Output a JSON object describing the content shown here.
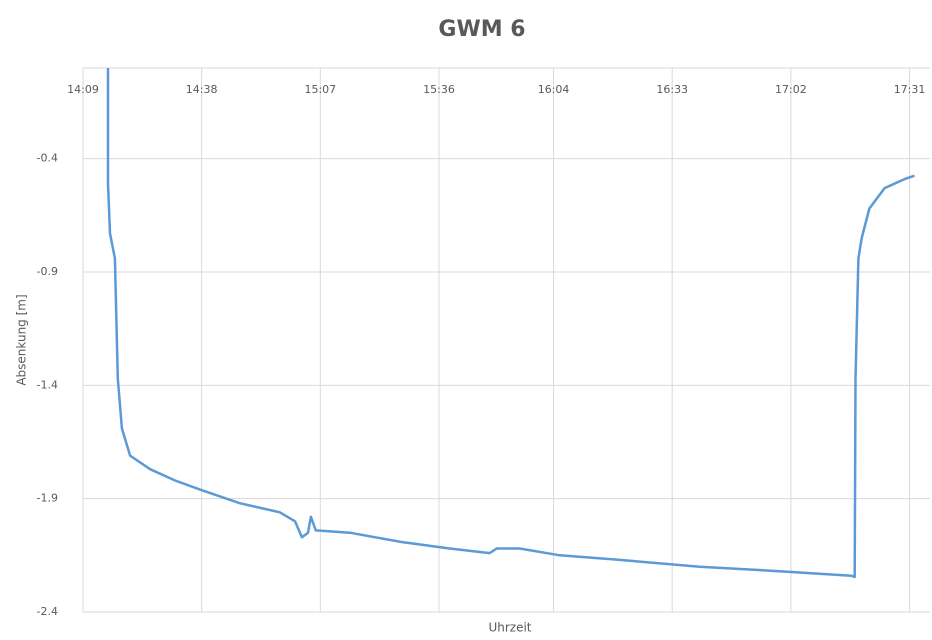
{
  "chart_data": {
    "type": "line",
    "title": "GWM 6",
    "x_label": "Uhrzeit",
    "y_label": "Absenkung [m]",
    "x": [
      855.1,
      855.1,
      855.6,
      856.8,
      857.5,
      858.5,
      860.5,
      865.4,
      871.5,
      877.6,
      887.3,
      897.1,
      900.8,
      902.5,
      904,
      904.7,
      905.9,
      914.2,
      926.4,
      938.6,
      948.4,
      950.1,
      955.7,
      965.5,
      980.2,
      999.7,
      1019.2,
      1036.8,
      1037.6,
      1037.8,
      1038.5,
      1039.3,
      1041.2,
      1044.9,
      1049.8,
      1052.2
    ],
    "series": [
      {
        "name": "GWM 6",
        "color": "#5b9bd5",
        "values": [
          0,
          -0.51,
          -0.73,
          -0.84,
          -1.37,
          -1.59,
          -1.71,
          -1.77,
          -1.82,
          -1.86,
          -1.92,
          -1.96,
          -2.0,
          -2.07,
          -2.05,
          -1.98,
          -2.04,
          -2.05,
          -2.09,
          -2.12,
          -2.14,
          -2.12,
          -2.12,
          -2.15,
          -2.17,
          -2.2,
          -2.22,
          -2.24,
          -2.245,
          -1.37,
          -0.84,
          -0.75,
          -0.62,
          -0.53,
          -0.49,
          -0.475
        ]
      }
    ],
    "xlim": [
      849,
      1056
    ],
    "xticks": [
      {
        "value": 849,
        "label": "14:09"
      },
      {
        "value": 878,
        "label": "14:38"
      },
      {
        "value": 907,
        "label": "15:07"
      },
      {
        "value": 936,
        "label": "15:36"
      },
      {
        "value": 964,
        "label": "16:04"
      },
      {
        "value": 993,
        "label": "16:33"
      },
      {
        "value": 1022,
        "label": "17:02"
      },
      {
        "value": 1051,
        "label": "17:31"
      }
    ],
    "ylim": [
      -2.4,
      0
    ],
    "yticks": [
      -2.4,
      -1.9,
      -1.4,
      -0.9,
      -0.4
    ],
    "grid": true
  }
}
